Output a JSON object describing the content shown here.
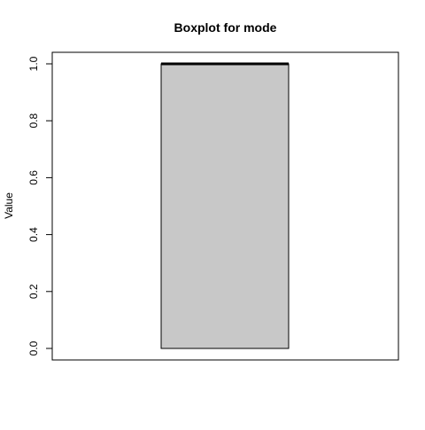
{
  "chart_data": {
    "type": "boxplot",
    "title": "Boxplot for mode",
    "xlabel": "",
    "ylabel": "Value",
    "ylim": [
      0,
      1
    ],
    "yticks": [
      0.0,
      0.2,
      0.4,
      0.6,
      0.8,
      1.0
    ],
    "ytick_labels": [
      "0.0",
      "0.2",
      "0.4",
      "0.6",
      "0.8",
      "1.0"
    ],
    "grid": false,
    "legend": "none",
    "box": {
      "min": 0,
      "q1": 0,
      "median": 1,
      "q3": 1,
      "max": 1
    },
    "box_fill": "#c8c8c8",
    "line_color": "#000000"
  }
}
